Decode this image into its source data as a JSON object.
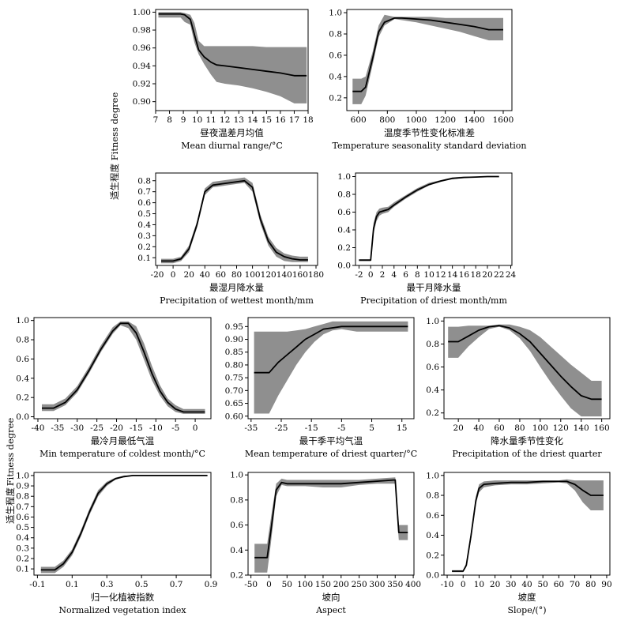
{
  "y_labels": [
    {
      "cn": "适生程度",
      "en": "Fitness degree"
    },
    {
      "cn": "适生程度",
      "en": "Fitness degree"
    },
    {
      "cn": "适生程度",
      "en": "Fitness degree"
    }
  ],
  "chart_data": [
    {
      "type": "line",
      "xlabel_cn": "昼夜温差月均值",
      "xlabel_en": "Mean diurnal range/°C",
      "xlim": [
        7,
        18
      ],
      "ylim": [
        0.89,
        1.003
      ],
      "xticks": [
        7,
        8,
        9,
        10,
        11,
        12,
        13,
        14,
        15,
        16,
        17,
        18
      ],
      "yticks": [
        0.9,
        0.92,
        0.94,
        0.96,
        0.98,
        1.0
      ],
      "ydec": 2,
      "x": [
        7.2,
        8.8,
        9.1,
        9.5,
        9.8,
        10.1,
        10.5,
        11.0,
        11.4,
        12.0,
        13.0,
        14.0,
        15.0,
        16.0,
        17.0,
        17.9
      ],
      "mean": [
        0.998,
        0.998,
        0.997,
        0.992,
        0.975,
        0.958,
        0.95,
        0.944,
        0.941,
        0.94,
        0.938,
        0.936,
        0.934,
        0.932,
        0.929,
        0.929
      ],
      "lower": [
        0.994,
        0.994,
        0.989,
        0.986,
        0.966,
        0.953,
        0.942,
        0.93,
        0.922,
        0.92,
        0.918,
        0.915,
        0.911,
        0.906,
        0.898,
        0.898
      ],
      "upper": [
        1.0,
        1.0,
        0.999,
        0.997,
        0.988,
        0.968,
        0.962,
        0.962,
        0.962,
        0.962,
        0.962,
        0.962,
        0.961,
        0.961,
        0.961,
        0.961
      ]
    },
    {
      "type": "line",
      "xlabel_cn": "温度季节性变化标准差",
      "xlabel_en": "Temperature seasonality standard deviation",
      "xlim": [
        520,
        1660
      ],
      "ylim": [
        0.08,
        1.03
      ],
      "xticks": [
        600,
        800,
        1000,
        1200,
        1400,
        1600
      ],
      "yticks": [
        0.2,
        0.4,
        0.6,
        0.8,
        1.0
      ],
      "ydec": 1,
      "x": [
        560,
        620,
        650,
        700,
        740,
        780,
        850,
        900,
        1000,
        1100,
        1200,
        1300,
        1400,
        1500,
        1600
      ],
      "mean": [
        0.26,
        0.26,
        0.3,
        0.58,
        0.82,
        0.91,
        0.95,
        0.95,
        0.94,
        0.93,
        0.91,
        0.89,
        0.87,
        0.84,
        0.84
      ],
      "lower": [
        0.14,
        0.14,
        0.22,
        0.52,
        0.77,
        0.88,
        0.94,
        0.93,
        0.91,
        0.88,
        0.85,
        0.82,
        0.78,
        0.74,
        0.74
      ],
      "upper": [
        0.38,
        0.38,
        0.4,
        0.64,
        0.88,
        0.98,
        0.96,
        0.96,
        0.96,
        0.96,
        0.95,
        0.95,
        0.95,
        0.95,
        0.95
      ]
    },
    {
      "type": "line",
      "xlabel_cn": "最湿月降水量",
      "xlabel_en": "Precipitation of wettest month/mm",
      "xlim": [
        -22,
        182
      ],
      "ylim": [
        0.03,
        0.87
      ],
      "xticks": [
        -20,
        0,
        20,
        40,
        60,
        80,
        100,
        120,
        140,
        160,
        180
      ],
      "yticks": [
        0.1,
        0.2,
        0.3,
        0.4,
        0.5,
        0.6,
        0.7,
        0.8
      ],
      "ydec": 1,
      "x": [
        -15,
        0,
        10,
        20,
        30,
        40,
        50,
        60,
        70,
        80,
        90,
        100,
        110,
        120,
        130,
        140,
        150,
        160,
        170
      ],
      "mean": [
        0.07,
        0.07,
        0.09,
        0.18,
        0.4,
        0.7,
        0.76,
        0.77,
        0.78,
        0.79,
        0.8,
        0.74,
        0.45,
        0.25,
        0.15,
        0.11,
        0.09,
        0.08,
        0.08
      ],
      "lower": [
        0.05,
        0.05,
        0.07,
        0.15,
        0.37,
        0.67,
        0.74,
        0.75,
        0.76,
        0.77,
        0.78,
        0.7,
        0.41,
        0.21,
        0.11,
        0.07,
        0.06,
        0.06,
        0.06
      ],
      "upper": [
        0.09,
        0.09,
        0.11,
        0.21,
        0.43,
        0.73,
        0.79,
        0.8,
        0.81,
        0.82,
        0.83,
        0.78,
        0.49,
        0.29,
        0.19,
        0.14,
        0.12,
        0.11,
        0.11
      ]
    },
    {
      "type": "line",
      "xlabel_cn": "最干月降水量",
      "xlabel_en": "Precipitation of driest month/mm",
      "xlim": [
        -2.6,
        24.2
      ],
      "ylim": [
        0.0,
        1.04
      ],
      "xticks": [
        -2,
        0,
        2,
        4,
        6,
        8,
        10,
        12,
        14,
        16,
        18,
        20,
        22,
        24
      ],
      "yticks": [
        0.0,
        0.2,
        0.4,
        0.6,
        0.8,
        1.0
      ],
      "ydec": 1,
      "x": [
        -2,
        0,
        0.5,
        1,
        1.5,
        2,
        3,
        4,
        6,
        8,
        10,
        12,
        14,
        16,
        18,
        20,
        22
      ],
      "mean": [
        0.06,
        0.06,
        0.42,
        0.55,
        0.6,
        0.61,
        0.63,
        0.68,
        0.77,
        0.85,
        0.91,
        0.95,
        0.98,
        0.99,
        0.995,
        1.0,
        1.0
      ],
      "lower": [
        0.05,
        0.05,
        0.36,
        0.5,
        0.56,
        0.58,
        0.6,
        0.66,
        0.75,
        0.83,
        0.9,
        0.94,
        0.97,
        0.985,
        0.99,
        0.995,
        0.995
      ],
      "upper": [
        0.07,
        0.07,
        0.48,
        0.6,
        0.64,
        0.65,
        0.66,
        0.71,
        0.79,
        0.87,
        0.93,
        0.96,
        0.99,
        1.0,
        1.0,
        1.0,
        1.0
      ]
    },
    {
      "type": "line",
      "xlabel_cn": "最冷月最低气温",
      "xlabel_en": "Min temperature of coldest month/°C",
      "xlim": [
        -41,
        4
      ],
      "ylim": [
        -0.02,
        1.03
      ],
      "xticks": [
        -40,
        -35,
        -30,
        -25,
        -20,
        -15,
        -10,
        -5,
        0
      ],
      "yticks": [
        0.0,
        0.2,
        0.4,
        0.6,
        0.8,
        1.0
      ],
      "ydec": 1,
      "x": [
        -39,
        -36,
        -33,
        -30,
        -27,
        -24,
        -21,
        -19,
        -17,
        -15,
        -13,
        -11,
        -9,
        -7,
        -5,
        -3,
        -1,
        2.5
      ],
      "mean": [
        0.09,
        0.09,
        0.15,
        0.28,
        0.48,
        0.7,
        0.89,
        0.97,
        0.97,
        0.87,
        0.67,
        0.45,
        0.27,
        0.15,
        0.08,
        0.05,
        0.05,
        0.05
      ],
      "lower": [
        0.06,
        0.06,
        0.12,
        0.25,
        0.45,
        0.67,
        0.86,
        0.95,
        0.92,
        0.8,
        0.59,
        0.38,
        0.22,
        0.11,
        0.05,
        0.03,
        0.03,
        0.03
      ],
      "upper": [
        0.13,
        0.13,
        0.19,
        0.32,
        0.52,
        0.74,
        0.93,
        0.99,
        0.99,
        0.94,
        0.76,
        0.53,
        0.33,
        0.19,
        0.12,
        0.08,
        0.08,
        0.08
      ]
    },
    {
      "type": "line",
      "xlabel_cn": "最干季平均气温",
      "xlabel_en": "Mean temperature of driest quarter/°C",
      "xlim": [
        -36,
        19
      ],
      "ylim": [
        0.59,
        0.985
      ],
      "xticks": [
        -35,
        -25,
        -15,
        -5,
        5,
        15
      ],
      "yticks": [
        0.6,
        0.65,
        0.7,
        0.75,
        0.8,
        0.85,
        0.9,
        0.95
      ],
      "ydec": 2,
      "x": [
        -34,
        -29,
        -26,
        -23,
        -20,
        -17,
        -14,
        -11,
        -8,
        -5,
        0,
        5,
        10,
        17
      ],
      "mean": [
        0.77,
        0.77,
        0.81,
        0.84,
        0.87,
        0.9,
        0.92,
        0.94,
        0.945,
        0.95,
        0.95,
        0.95,
        0.95,
        0.95
      ],
      "lower": [
        0.61,
        0.61,
        0.68,
        0.74,
        0.8,
        0.85,
        0.89,
        0.92,
        0.935,
        0.94,
        0.93,
        0.93,
        0.93,
        0.93
      ],
      "upper": [
        0.93,
        0.93,
        0.93,
        0.93,
        0.935,
        0.94,
        0.95,
        0.96,
        0.97,
        0.97,
        0.97,
        0.97,
        0.97,
        0.97
      ]
    },
    {
      "type": "line",
      "xlabel_cn": "降水量季节性变化",
      "xlabel_en": "Precipitation of the driest quarter",
      "xlim": [
        6,
        168
      ],
      "ylim": [
        0.15,
        1.03
      ],
      "xticks": [
        20,
        40,
        60,
        80,
        100,
        120,
        140,
        160
      ],
      "yticks": [
        0.2,
        0.4,
        0.6,
        0.8,
        1.0
      ],
      "ydec": 1,
      "x": [
        10,
        20,
        30,
        40,
        50,
        60,
        70,
        80,
        90,
        100,
        110,
        120,
        130,
        140,
        150,
        160
      ],
      "mean": [
        0.82,
        0.82,
        0.87,
        0.92,
        0.95,
        0.96,
        0.94,
        0.89,
        0.82,
        0.72,
        0.62,
        0.52,
        0.43,
        0.35,
        0.32,
        0.32
      ],
      "lower": [
        0.68,
        0.68,
        0.78,
        0.86,
        0.93,
        0.95,
        0.92,
        0.85,
        0.74,
        0.6,
        0.47,
        0.35,
        0.24,
        0.17,
        0.17,
        0.17
      ],
      "upper": [
        0.95,
        0.95,
        0.96,
        0.96,
        0.96,
        0.97,
        0.97,
        0.95,
        0.92,
        0.86,
        0.78,
        0.7,
        0.62,
        0.55,
        0.48,
        0.48
      ]
    },
    {
      "type": "line",
      "xlabel_cn": "归一化植被指数",
      "xlabel_en": "Normalized vegetation index",
      "xlim": [
        -0.12,
        0.9
      ],
      "ylim": [
        0.04,
        1.03
      ],
      "xticks": [
        -0.1,
        0.1,
        0.3,
        0.5,
        0.7,
        0.9
      ],
      "yticks": [
        0.1,
        0.2,
        0.3,
        0.4,
        0.5,
        0.6,
        0.7,
        0.8,
        0.9,
        1.0
      ],
      "ydec": 1,
      "x": [
        -0.08,
        0.0,
        0.05,
        0.1,
        0.15,
        0.2,
        0.25,
        0.3,
        0.35,
        0.4,
        0.45,
        0.5,
        0.6,
        0.7,
        0.88
      ],
      "mean": [
        0.09,
        0.09,
        0.15,
        0.26,
        0.44,
        0.65,
        0.83,
        0.92,
        0.97,
        0.99,
        1.0,
        1.0,
        1.0,
        1.0,
        1.0
      ],
      "lower": [
        0.06,
        0.06,
        0.12,
        0.23,
        0.41,
        0.62,
        0.8,
        0.9,
        0.96,
        0.985,
        0.995,
        0.995,
        0.995,
        0.995,
        0.995
      ],
      "upper": [
        0.12,
        0.12,
        0.18,
        0.29,
        0.47,
        0.68,
        0.86,
        0.94,
        0.98,
        1.0,
        1.0,
        1.0,
        1.0,
        1.0,
        1.0
      ]
    },
    {
      "type": "line",
      "xlabel_cn": "坡向",
      "xlabel_en": "Aspect",
      "xlim": [
        -58,
        402
      ],
      "ylim": [
        0.2,
        1.02
      ],
      "xticks": [
        -50,
        0,
        50,
        100,
        150,
        200,
        250,
        300,
        350,
        400
      ],
      "yticks": [
        0.2,
        0.4,
        0.6,
        0.8,
        1.0
      ],
      "ydec": 1,
      "x": [
        -40,
        -5,
        5,
        20,
        35,
        50,
        100,
        150,
        200,
        250,
        300,
        350,
        355,
        360,
        385
      ],
      "mean": [
        0.34,
        0.34,
        0.55,
        0.88,
        0.94,
        0.93,
        0.93,
        0.93,
        0.93,
        0.94,
        0.95,
        0.96,
        0.75,
        0.54,
        0.54
      ],
      "lower": [
        0.22,
        0.22,
        0.45,
        0.83,
        0.92,
        0.91,
        0.91,
        0.9,
        0.9,
        0.92,
        0.93,
        0.93,
        0.68,
        0.48,
        0.48
      ],
      "upper": [
        0.45,
        0.45,
        0.65,
        0.93,
        0.97,
        0.96,
        0.96,
        0.96,
        0.96,
        0.96,
        0.97,
        0.98,
        0.82,
        0.6,
        0.6
      ]
    },
    {
      "type": "line",
      "xlabel_cn": "坡度",
      "xlabel_en": "Slope/(°)",
      "xlim": [
        -12,
        92
      ],
      "ylim": [
        0.0,
        1.03
      ],
      "xticks": [
        -10,
        0,
        10,
        20,
        30,
        40,
        50,
        60,
        70,
        80,
        90
      ],
      "yticks": [
        0.0,
        0.2,
        0.4,
        0.6,
        0.8,
        1.0
      ],
      "ydec": 1,
      "x": [
        -7,
        0,
        2,
        5,
        8,
        10,
        13,
        20,
        30,
        40,
        50,
        60,
        65,
        70,
        75,
        80,
        88
      ],
      "mean": [
        0.04,
        0.04,
        0.1,
        0.4,
        0.75,
        0.87,
        0.91,
        0.92,
        0.93,
        0.93,
        0.94,
        0.94,
        0.94,
        0.91,
        0.85,
        0.8,
        0.8
      ],
      "lower": [
        0.03,
        0.03,
        0.08,
        0.36,
        0.71,
        0.83,
        0.88,
        0.9,
        0.91,
        0.91,
        0.92,
        0.93,
        0.92,
        0.85,
        0.73,
        0.65,
        0.65
      ],
      "upper": [
        0.05,
        0.05,
        0.12,
        0.44,
        0.79,
        0.91,
        0.94,
        0.95,
        0.95,
        0.95,
        0.95,
        0.95,
        0.96,
        0.95,
        0.95,
        0.95,
        0.95
      ]
    }
  ]
}
